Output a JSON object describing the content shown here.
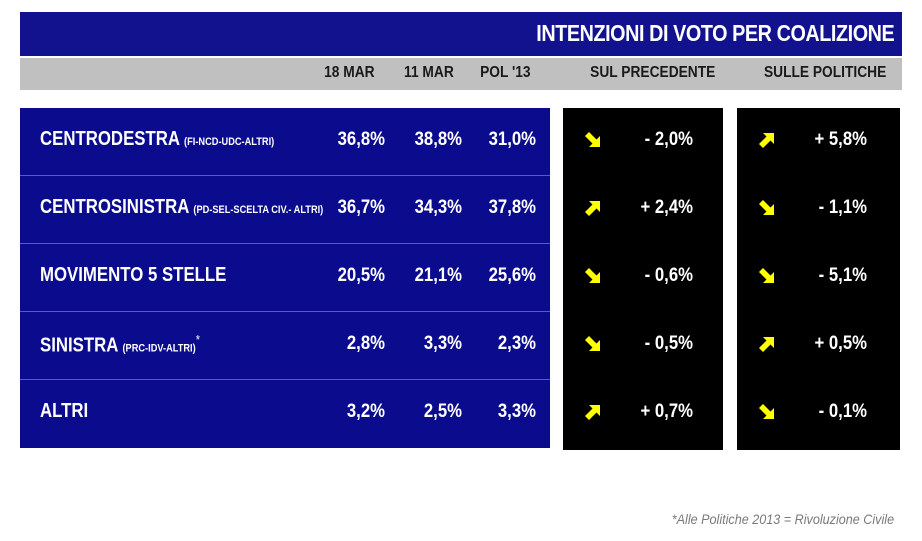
{
  "chart_data": {
    "type": "table",
    "title": "INTENZIONI DI VOTO PER COALIZIONE",
    "columns": [
      "18 MAR",
      "11 MAR",
      "POL '13",
      "SUL PRECEDENTE",
      "SULLE POLITICHE"
    ],
    "rows": [
      {
        "name": "CENTRODESTRA",
        "detail": "(FI-NCD-UDC-ALTRI)",
        "star": "",
        "mar18": "36,8%",
        "mar11": "38,8%",
        "pol13": "31,0%",
        "prev_dir": "down",
        "prev": "- 2,0%",
        "pol_dir": "up",
        "pol": "+ 5,8%"
      },
      {
        "name": "CENTROSINISTRA",
        "detail": "(PD-SEL-SCELTA CIV.- ALTRI)",
        "star": "",
        "mar18": "36,7%",
        "mar11": "34,3%",
        "pol13": "37,8%",
        "prev_dir": "up",
        "prev": "+ 2,4%",
        "pol_dir": "down",
        "pol": "- 1,1%"
      },
      {
        "name": "MOVIMENTO 5 STELLE",
        "detail": "",
        "star": "",
        "mar18": "20,5%",
        "mar11": "21,1%",
        "pol13": "25,6%",
        "prev_dir": "down",
        "prev": "- 0,6%",
        "pol_dir": "down",
        "pol": "- 5,1%"
      },
      {
        "name": "SINISTRA",
        "detail": "(PRC-IDV-ALTRI)",
        "star": "*",
        "mar18": "2,8%",
        "mar11": "3,3%",
        "pol13": "2,3%",
        "prev_dir": "down",
        "prev": "- 0,5%",
        "pol_dir": "up",
        "pol": "+ 0,5%"
      },
      {
        "name": "ALTRI",
        "detail": "",
        "star": "",
        "mar18": "3,2%",
        "mar11": "2,5%",
        "pol13": "3,3%",
        "prev_dir": "up",
        "prev": "+ 0,7%",
        "pol_dir": "down",
        "pol": "- 0,1%"
      }
    ],
    "footnote": "*Alle Politiche 2013 = Rivoluzione Civile"
  },
  "colors": {
    "title_bg": "#12128f",
    "header_bg": "#c0c0c0",
    "table_bg": "#0b0b8e",
    "delta_bg": "#000000",
    "arrow": "#ffff00"
  },
  "icons": {
    "up": "arrow-up-right-icon",
    "down": "arrow-down-right-icon"
  }
}
